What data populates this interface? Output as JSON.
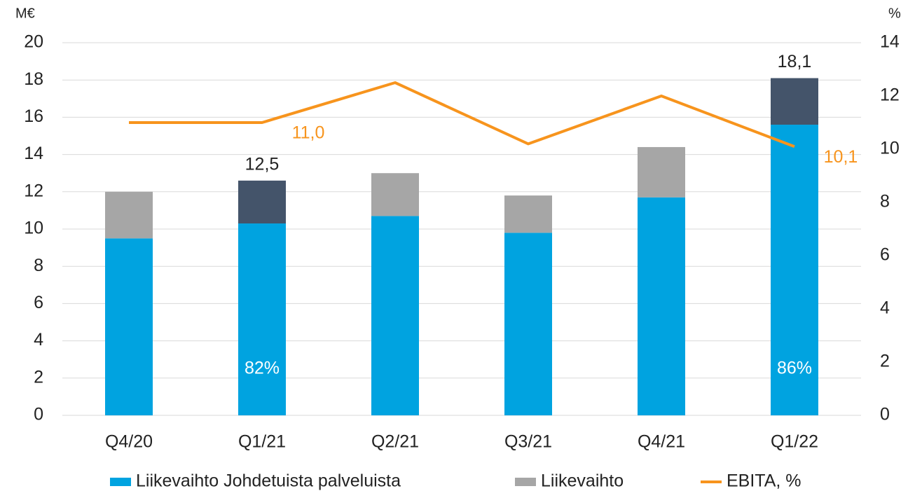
{
  "chart_data": {
    "type": "bar-line",
    "y_unit": "M€",
    "y2_unit": "%",
    "categories": [
      "Q4/20",
      "Q1/21",
      "Q2/21",
      "Q3/21",
      "Q4/21",
      "Q1/22"
    ],
    "series": [
      {
        "name": "Liikevaihto Johdetuista palveluista",
        "type": "bar",
        "color": "#00a3e0",
        "values": [
          9.5,
          10.3,
          10.7,
          9.8,
          11.7,
          15.6
        ]
      },
      {
        "name": "Liikevaihto",
        "type": "bar",
        "color": "#a6a6a6",
        "colors": [
          "#a6a6a6",
          "#44546a",
          "#a6a6a6",
          "#a6a6a6",
          "#a6a6a6",
          "#44546a"
        ],
        "values": [
          2.5,
          2.3,
          2.3,
          2.0,
          2.7,
          2.5
        ]
      },
      {
        "name": "EBITA, %",
        "type": "line",
        "axis": "y2",
        "color": "#f7941d",
        "values": [
          11.0,
          11.0,
          12.5,
          10.2,
          12.0,
          10.1
        ],
        "value_labels": [
          null,
          "11,0",
          null,
          null,
          null,
          "10,1"
        ]
      }
    ],
    "annotations": [
      {
        "category": "Q1/21",
        "text": "12,5",
        "position": "top"
      },
      {
        "category": "Q1/22",
        "text": "18,1",
        "position": "top"
      },
      {
        "category": "Q1/21",
        "text": "82%",
        "position": "inside"
      },
      {
        "category": "Q1/22",
        "text": "86%",
        "position": "inside"
      }
    ],
    "ylim": [
      0,
      20
    ],
    "yticks": [
      0,
      2,
      4,
      6,
      8,
      10,
      12,
      14,
      16,
      18,
      20
    ],
    "y2lim": [
      0,
      14
    ],
    "y2ticks": [
      0,
      2,
      4,
      6,
      8,
      10,
      12,
      14
    ],
    "grid": true,
    "legend": "bottom"
  }
}
